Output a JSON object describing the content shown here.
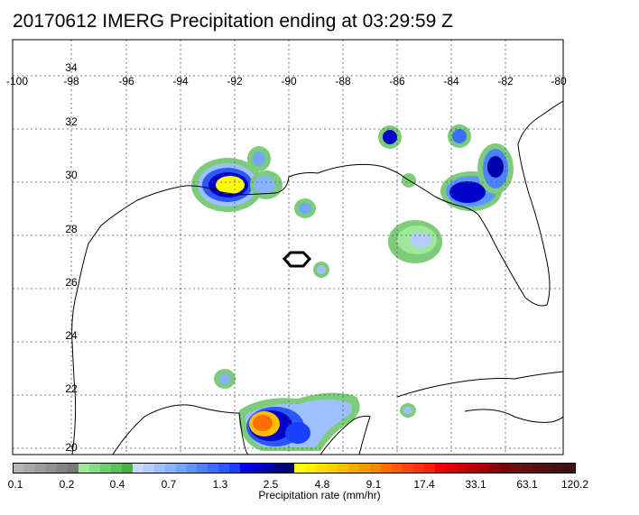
{
  "title": "20170612 IMERG Precipitation ending at 03:29:59 Z",
  "map": {
    "lon_ticks": [
      "-100",
      "-98",
      "-96",
      "-94",
      "-92",
      "-90",
      "-88",
      "-86",
      "-84",
      "-82",
      "-80"
    ],
    "lat_ticks": [
      "34",
      "32",
      "30",
      "28",
      "26",
      "24",
      "22",
      "20"
    ],
    "grid": true,
    "region": "Gulf of Mexico"
  },
  "colorbar": {
    "tick_labels": [
      "0.1",
      "0.2",
      "0.4",
      "0.7",
      "1.3",
      "2.5",
      "4.8",
      "9.1",
      "17.4",
      "33.1",
      "63.1",
      "120.2"
    ],
    "title": "Precipitation rate (mm/hr)",
    "colors": [
      "#b4b4b4",
      "#a8a8a8",
      "#9c9c9c",
      "#909090",
      "#848484",
      "#787878",
      "#9ee89a",
      "#86dc82",
      "#6fcf6c",
      "#58c256",
      "#46b444",
      "#c8d8ff",
      "#b4ccff",
      "#9ec0ff",
      "#88b4ff",
      "#72a6ff",
      "#5a96ff",
      "#4a82ff",
      "#3a6eff",
      "#2a58ff",
      "#1a40ff",
      "#0000e6",
      "#0000c8",
      "#0000aa",
      "#00008c",
      "#000078",
      "#ffff00",
      "#fff000",
      "#ffe000",
      "#ffd000",
      "#ffbe00",
      "#ffaa00",
      "#ff9600",
      "#ff8200",
      "#ff6e00",
      "#ff5a00",
      "#ff4600",
      "#ff3200",
      "#ff1e00",
      "#f00000",
      "#dc0000",
      "#c80000",
      "#b40000",
      "#a00000",
      "#8c0000",
      "#780000",
      "#6e1010",
      "#641010",
      "#5a1010",
      "#501010",
      "#461010",
      "#3c1010"
    ]
  },
  "legend_colors": {
    "land": "#ffffff",
    "coast": "#000000",
    "grid": "#555555"
  }
}
